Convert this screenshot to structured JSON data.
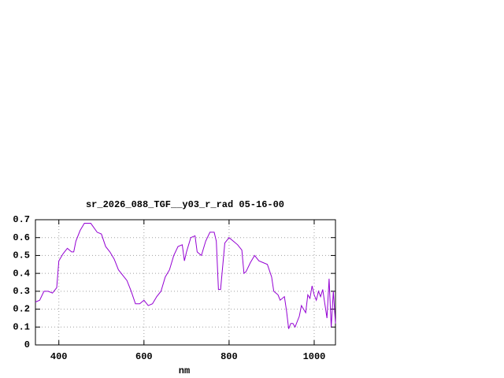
{
  "chart_data": {
    "type": "line",
    "title": "sr_2026_088_TGF__y03_r_rad 05-16-00",
    "x_label": "nm",
    "color": "#9400d3",
    "grid": true,
    "xlim": [
      345,
      1050
    ],
    "ylim": [
      0,
      0.7
    ],
    "xticks": [
      400,
      600,
      800,
      1000
    ],
    "yticks": [
      0,
      0.1,
      0.2,
      0.3,
      0.4,
      0.5,
      0.6,
      0.7
    ],
    "x": [
      345,
      355,
      365,
      375,
      385,
      395,
      400,
      410,
      420,
      430,
      435,
      440,
      450,
      460,
      475,
      490,
      500,
      510,
      520,
      530,
      540,
      550,
      560,
      570,
      580,
      590,
      600,
      610,
      620,
      630,
      640,
      650,
      660,
      670,
      680,
      690,
      695,
      700,
      710,
      720,
      725,
      735,
      745,
      755,
      765,
      770,
      775,
      780,
      790,
      800,
      810,
      820,
      830,
      835,
      840,
      850,
      860,
      870,
      880,
      890,
      900,
      905,
      915,
      920,
      930,
      935,
      940,
      945,
      950,
      955,
      965,
      970,
      980,
      985,
      990,
      995,
      1000,
      1005,
      1010,
      1015,
      1020,
      1025,
      1030,
      1035,
      1040,
      1045,
      1050
    ],
    "values": [
      0.24,
      0.25,
      0.3,
      0.3,
      0.29,
      0.32,
      0.47,
      0.51,
      0.54,
      0.52,
      0.52,
      0.58,
      0.64,
      0.68,
      0.68,
      0.63,
      0.62,
      0.55,
      0.52,
      0.48,
      0.42,
      0.39,
      0.36,
      0.3,
      0.23,
      0.23,
      0.25,
      0.22,
      0.23,
      0.27,
      0.3,
      0.38,
      0.42,
      0.5,
      0.55,
      0.56,
      0.47,
      0.52,
      0.6,
      0.61,
      0.52,
      0.5,
      0.58,
      0.63,
      0.63,
      0.58,
      0.31,
      0.31,
      0.57,
      0.6,
      0.58,
      0.56,
      0.53,
      0.4,
      0.41,
      0.46,
      0.5,
      0.47,
      0.46,
      0.45,
      0.38,
      0.3,
      0.28,
      0.25,
      0.27,
      0.19,
      0.09,
      0.12,
      0.12,
      0.1,
      0.16,
      0.22,
      0.18,
      0.28,
      0.26,
      0.33,
      0.28,
      0.25,
      0.3,
      0.27,
      0.31,
      0.23,
      0.15,
      0.37,
      0.1,
      0.3,
      0.12
    ]
  }
}
